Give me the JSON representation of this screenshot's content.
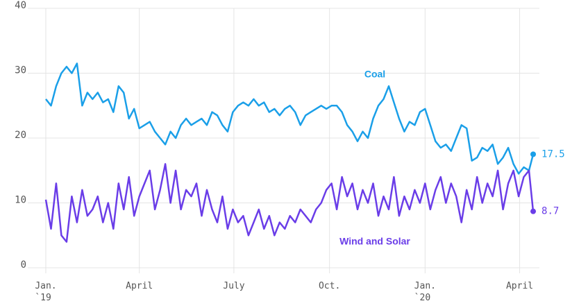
{
  "chart_data": {
    "type": "line",
    "x": [
      0,
      5,
      10,
      15,
      20,
      25,
      30,
      35,
      40,
      45,
      50,
      55,
      60,
      65,
      70,
      75,
      80,
      85,
      90,
      95,
      100,
      105,
      110,
      115,
      120,
      125,
      130,
      135,
      140,
      145,
      150,
      155,
      160,
      165,
      170,
      175,
      180,
      185,
      190,
      195,
      200,
      205,
      210,
      215,
      220,
      225,
      230,
      235,
      240,
      245,
      250,
      255,
      260,
      265,
      270,
      275,
      280,
      285,
      290,
      295,
      300,
      305,
      310,
      315,
      320,
      325,
      330,
      335,
      340,
      345,
      350,
      355,
      360,
      365,
      370,
      375,
      380,
      385,
      390,
      395,
      400,
      405,
      410,
      415,
      420,
      425,
      430,
      435,
      440,
      445,
      450,
      455,
      460,
      465,
      469
    ],
    "series": [
      {
        "name": "Coal",
        "color": "#1a9fe8",
        "values": [
          26,
          25,
          28,
          30,
          31,
          30,
          31.5,
          25,
          27,
          26,
          27,
          25.5,
          26,
          24,
          28,
          27,
          23,
          24.5,
          21.5,
          22,
          22.5,
          21,
          20,
          19,
          21,
          20,
          22,
          23,
          22,
          22.5,
          23,
          22,
          24,
          23.5,
          22,
          21,
          24,
          25,
          25.5,
          25,
          26,
          25,
          25.5,
          24,
          24.5,
          23.5,
          24.5,
          25,
          24,
          22,
          23.5,
          24,
          24.5,
          25,
          24.5,
          25,
          25,
          24,
          22,
          21,
          19.5,
          21,
          20,
          23,
          25,
          26,
          28,
          25.5,
          23,
          21,
          22.5,
          22,
          24,
          24.5,
          22,
          19.5,
          18.5,
          19,
          18,
          20,
          22,
          21.5,
          16.5,
          17,
          18.5,
          18,
          19,
          16,
          17,
          18.5,
          16,
          14.5,
          15.5,
          15,
          17.5
        ]
      },
      {
        "name": "Wind and Solar",
        "color": "#6a3de8",
        "values": [
          10.5,
          6,
          13,
          5,
          4,
          11,
          7,
          12,
          8,
          9,
          11,
          7,
          10,
          6,
          13,
          9,
          14,
          8,
          11,
          13,
          15,
          9,
          12,
          16,
          10,
          15,
          9,
          12,
          11,
          13,
          8,
          12,
          9,
          7,
          11,
          6,
          9,
          7,
          8,
          5,
          7,
          9,
          6,
          8,
          5,
          7,
          6,
          8,
          7,
          9,
          8,
          7,
          9,
          10,
          12,
          13,
          9,
          14,
          11,
          13,
          9,
          12,
          10,
          13,
          8,
          11,
          9,
          14,
          8,
          11,
          9,
          12,
          10,
          13,
          9,
          12,
          14,
          10,
          13,
          11,
          7,
          12,
          9,
          14,
          10,
          13,
          11,
          15,
          9,
          13,
          15,
          11,
          14,
          15,
          8.7
        ]
      }
    ],
    "xlim": [
      -8,
      475
    ],
    "xticks": [
      {
        "value": 0,
        "label": "Jan.\n`19"
      },
      {
        "value": 90,
        "label": "April"
      },
      {
        "value": 181,
        "label": "July"
      },
      {
        "value": 273,
        "label": "Oct."
      },
      {
        "value": 365,
        "label": "Jan.\n`20"
      },
      {
        "value": 456,
        "label": "April"
      }
    ],
    "ylim": [
      0,
      40
    ],
    "yticks": [
      0,
      10,
      20,
      30,
      40
    ],
    "grid": true
  }
}
